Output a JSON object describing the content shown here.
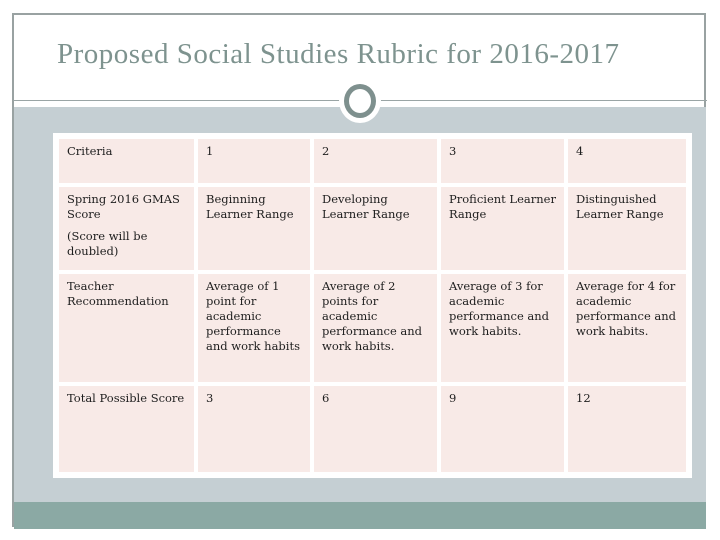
{
  "slide": {
    "title": "Proposed Social Studies Rubric for 2016-2017"
  },
  "rubric_table": {
    "header": [
      "Criteria",
      "1",
      "2",
      "3",
      "4"
    ],
    "rows": [
      {
        "criteria": "Spring 2016 GMAS Score",
        "criteria_note": "(Score will be doubled)",
        "values": [
          "Beginning Learner Range",
          "Developing Learner Range",
          "Proficient Learner Range",
          "Distinguished Learner Range"
        ]
      },
      {
        "criteria": "Teacher Recommendation",
        "values": [
          "Average of 1 point for academic performance and work habits",
          "Average of 2 points for academic performance and work habits.",
          "Average of 3 for academic performance and work habits.",
          "Average for 4 for academic performance and work habits."
        ]
      },
      {
        "criteria": "Total Possible Score",
        "values": [
          "3",
          "6",
          "9",
          "12"
        ]
      }
    ]
  },
  "colors": {
    "title_text": "#7e938f",
    "content_band": "#c5cfd3",
    "bottom_band": "#8ba9a4",
    "cell_background": "#f8eae7",
    "frame_border": "#99a2a2",
    "ornament_ring": "#7e908e"
  }
}
